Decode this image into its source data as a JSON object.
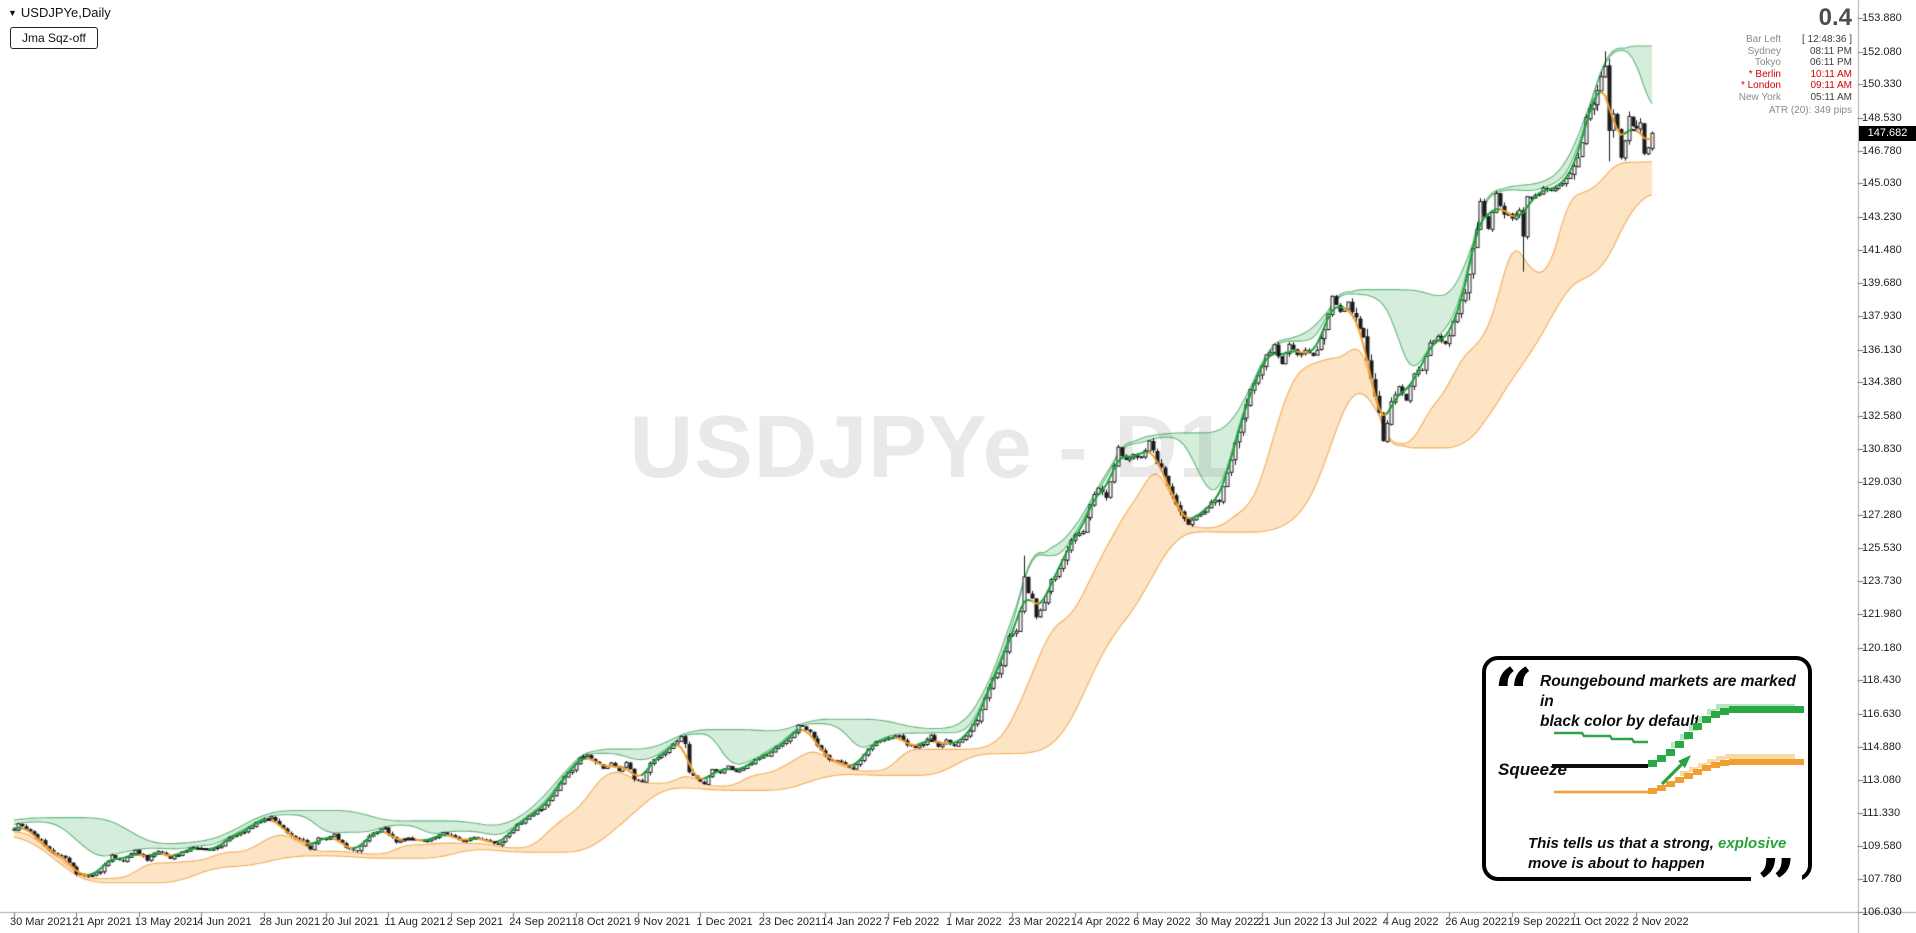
{
  "window": {
    "symbol_corner": "USDJPYe,Daily",
    "indicator_button": "Jma Sqz-off",
    "watermark": "USDJPYe - D1"
  },
  "icons": {
    "symbol_dropdown": "▼"
  },
  "info_panel": {
    "big_value": "0.4",
    "rows": [
      {
        "label": "Bar Left",
        "value": "[ 12:48:36 ]",
        "red": false
      },
      {
        "label": "Sydney",
        "value": "08:11 PM",
        "red": false
      },
      {
        "label": "Tokyo",
        "value": "06:11 PM",
        "red": false
      },
      {
        "label": "* Berlin",
        "value": "10:11 AM",
        "red": true
      },
      {
        "label": "* London",
        "value": "09:11 AM",
        "red": true
      },
      {
        "label": "New York",
        "value": "05:11 AM",
        "red": false
      }
    ],
    "atr_line": "ATR (20): 349 pips"
  },
  "price_axis": {
    "ticks": [
      "153.880",
      "152.080",
      "150.330",
      "148.530",
      "146.780",
      "145.030",
      "143.230",
      "141.480",
      "139.680",
      "137.930",
      "136.130",
      "134.380",
      "132.580",
      "130.830",
      "129.030",
      "127.280",
      "125.530",
      "123.730",
      "121.980",
      "120.180",
      "118.430",
      "116.630",
      "114.880",
      "113.080",
      "111.330",
      "109.580",
      "107.780",
      "106.030"
    ],
    "current_price": "147.682"
  },
  "time_axis": {
    "labels": [
      "30 Mar 2021",
      "21 Apr 2021",
      "13 May 2021",
      "4 Jun 2021",
      "28 Jun 2021",
      "20 Jul 2021",
      "11 Aug 2021",
      "2 Sep 2021",
      "24 Sep 2021",
      "18 Oct 2021",
      "9 Nov 2021",
      "1 Dec 2021",
      "23 Dec 2021",
      "14 Jan 2022",
      "7 Feb 2022",
      "1 Mar 2022",
      "23 Mar 2022",
      "14 Apr 2022",
      "6 May 2022",
      "30 May 2022",
      "21 Jun 2022",
      "13 Jul 2022",
      "4 Aug 2022",
      "26 Aug 2022",
      "19 Sep 2022",
      "11 Oct 2022",
      "2 Nov 2022"
    ],
    "label_bar_step": 16
  },
  "callout": {
    "line1": "Roungebound markets are marked in",
    "line2": "black color by default",
    "squeeze_label": "Squeeze",
    "bottom_pre": "This tells us that a strong, ",
    "bottom_highlight": "explosive",
    "bottom_post": "move is about to happen",
    "highlight_color": "#27a23c"
  },
  "chart_data": {
    "type": "candlestick",
    "title": "USDJPYe Daily candles with JMA Squeeze bands",
    "x_axis": "daily bars, 30 Mar 2021 - 8 Nov 2022",
    "y_axis": "USDJPY price",
    "y_range": [
      106.03,
      153.88
    ],
    "grid": false,
    "bars_total": 421,
    "bar0_date": "30 Mar 2021",
    "current_price": 147.682,
    "close_anchors": [
      [
        0,
        110.4
      ],
      [
        1,
        110.72
      ],
      [
        4,
        110.3
      ],
      [
        7,
        109.8
      ],
      [
        10,
        109.2
      ],
      [
        13,
        108.9
      ],
      [
        16,
        108.1
      ],
      [
        19,
        107.9
      ],
      [
        22,
        108.2
      ],
      [
        25,
        109.1
      ],
      [
        28,
        108.7
      ],
      [
        31,
        109.3
      ],
      [
        34,
        108.8
      ],
      [
        37,
        109.3
      ],
      [
        40,
        108.9
      ],
      [
        43,
        109.2
      ],
      [
        46,
        109.5
      ],
      [
        50,
        109.3
      ],
      [
        53,
        109.6
      ],
      [
        56,
        110.1
      ],
      [
        59,
        110.3
      ],
      [
        62,
        110.8
      ],
      [
        66,
        111.1
      ],
      [
        68,
        110.7
      ],
      [
        71,
        110.1
      ],
      [
        74,
        109.8
      ],
      [
        76,
        109.4
      ],
      [
        78,
        110.0
      ],
      [
        80,
        109.9
      ],
      [
        82,
        110.2
      ],
      [
        85,
        109.4
      ],
      [
        88,
        109.3
      ],
      [
        92,
        110.3
      ],
      [
        95,
        110.5
      ],
      [
        98,
        109.7
      ],
      [
        101,
        110.0
      ],
      [
        104,
        109.8
      ],
      [
        107,
        109.9
      ],
      [
        110,
        110.3
      ],
      [
        113,
        110.0
      ],
      [
        115,
        109.8
      ],
      [
        118,
        110.0
      ],
      [
        121,
        109.9
      ],
      [
        124,
        109.6
      ],
      [
        127,
        110.2
      ],
      [
        129,
        110.7
      ],
      [
        131,
        111.0
      ],
      [
        133,
        111.3
      ],
      [
        135,
        111.5
      ],
      [
        137,
        111.9
      ],
      [
        139,
        112.6
      ],
      [
        141,
        113.3
      ],
      [
        143,
        113.6
      ],
      [
        145,
        114.2
      ],
      [
        147,
        114.4
      ],
      [
        149,
        114.1
      ],
      [
        151,
        113.7
      ],
      [
        153,
        114.0
      ],
      [
        155,
        113.6
      ],
      [
        157,
        114.0
      ],
      [
        159,
        113.2
      ],
      [
        161,
        113.0
      ],
      [
        163,
        114.0
      ],
      [
        165,
        114.3
      ],
      [
        167,
        114.6
      ],
      [
        169,
        115.0
      ],
      [
        171,
        115.4
      ],
      [
        172,
        115.1
      ],
      [
        173,
        113.6
      ],
      [
        175,
        113.2
      ],
      [
        177,
        112.9
      ],
      [
        179,
        113.6
      ],
      [
        181,
        113.5
      ],
      [
        183,
        113.8
      ],
      [
        185,
        113.5
      ],
      [
        187,
        113.7
      ],
      [
        189,
        114.0
      ],
      [
        191,
        114.3
      ],
      [
        193,
        114.4
      ],
      [
        195,
        114.8
      ],
      [
        197,
        115.0
      ],
      [
        199,
        115.3
      ],
      [
        201,
        116.0
      ],
      [
        203,
        115.8
      ],
      [
        205,
        115.4
      ],
      [
        207,
        114.6
      ],
      [
        209,
        114.2
      ],
      [
        211,
        114.1
      ],
      [
        213,
        113.9
      ],
      [
        215,
        113.7
      ],
      [
        217,
        114.1
      ],
      [
        219,
        114.7
      ],
      [
        221,
        115.1
      ],
      [
        223,
        115.2
      ],
      [
        225,
        115.4
      ],
      [
        227,
        115.5
      ],
      [
        229,
        115.0
      ],
      [
        231,
        114.8
      ],
      [
        233,
        115.0
      ],
      [
        235,
        115.5
      ],
      [
        237,
        114.9
      ],
      [
        239,
        115.2
      ],
      [
        241,
        114.9
      ],
      [
        243,
        115.3
      ],
      [
        245,
        115.7
      ],
      [
        247,
        116.2
      ],
      [
        249,
        117.5
      ],
      [
        251,
        118.6
      ],
      [
        253,
        119.2
      ],
      [
        255,
        120.8
      ],
      [
        257,
        121.2
      ],
      [
        258,
        122.1
      ],
      [
        259,
        123.9
      ],
      [
        260,
        123.1
      ],
      [
        261,
        122.8
      ],
      [
        262,
        121.8
      ],
      [
        264,
        122.6
      ],
      [
        266,
        123.7
      ],
      [
        268,
        124.3
      ],
      [
        270,
        125.4
      ],
      [
        272,
        126.3
      ],
      [
        274,
        126.4
      ],
      [
        276,
        127.8
      ],
      [
        278,
        128.7
      ],
      [
        280,
        128.3
      ],
      [
        282,
        130.0
      ],
      [
        283,
        130.8
      ],
      [
        285,
        130.2
      ],
      [
        287,
        130.5
      ],
      [
        289,
        130.3
      ],
      [
        291,
        131.2
      ],
      [
        293,
        130.1
      ],
      [
        295,
        129.3
      ],
      [
        297,
        128.4
      ],
      [
        299,
        127.4
      ],
      [
        301,
        126.7
      ],
      [
        303,
        127.2
      ],
      [
        305,
        127.5
      ],
      [
        307,
        127.9
      ],
      [
        309,
        128.1
      ],
      [
        311,
        129.6
      ],
      [
        313,
        131.1
      ],
      [
        315,
        132.6
      ],
      [
        317,
        134.0
      ],
      [
        319,
        134.8
      ],
      [
        321,
        135.8
      ],
      [
        323,
        136.3
      ],
      [
        325,
        135.3
      ],
      [
        327,
        136.4
      ],
      [
        329,
        135.9
      ],
      [
        331,
        136.1
      ],
      [
        333,
        135.7
      ],
      [
        335,
        136.6
      ],
      [
        337,
        137.9
      ],
      [
        338,
        138.9
      ],
      [
        340,
        138.2
      ],
      [
        342,
        138.6
      ],
      [
        344,
        137.8
      ],
      [
        346,
        136.7
      ],
      [
        348,
        134.5
      ],
      [
        350,
        132.8
      ],
      [
        351,
        131.2
      ],
      [
        353,
        133.2
      ],
      [
        355,
        134.1
      ],
      [
        357,
        133.4
      ],
      [
        359,
        134.9
      ],
      [
        361,
        135.1
      ],
      [
        363,
        136.5
      ],
      [
        365,
        136.8
      ],
      [
        367,
        136.5
      ],
      [
        369,
        137.5
      ],
      [
        371,
        138.8
      ],
      [
        373,
        139.9
      ],
      [
        374,
        141.5
      ],
      [
        376,
        144.0
      ],
      [
        378,
        142.6
      ],
      [
        380,
        144.4
      ],
      [
        382,
        143.4
      ],
      [
        384,
        143.2
      ],
      [
        386,
        143.7
      ],
      [
        387,
        142.2
      ],
      [
        388,
        144.3
      ],
      [
        390,
        144.4
      ],
      [
        392,
        144.7
      ],
      [
        394,
        144.6
      ],
      [
        396,
        144.9
      ],
      [
        398,
        145.2
      ],
      [
        400,
        145.8
      ],
      [
        402,
        147.2
      ],
      [
        403,
        148.7
      ],
      [
        405,
        149.3
      ],
      [
        406,
        149.9
      ],
      [
        407,
        150.8
      ],
      [
        408,
        151.3
      ],
      [
        409,
        147.7
      ],
      [
        410,
        148.9
      ],
      [
        411,
        147.9
      ],
      [
        412,
        146.4
      ],
      [
        413,
        147.4
      ],
      [
        414,
        148.6
      ],
      [
        415,
        148.2
      ],
      [
        416,
        147.9
      ],
      [
        417,
        148.3
      ],
      [
        418,
        146.7
      ],
      [
        419,
        146.9
      ],
      [
        420,
        147.68
      ]
    ],
    "spikes": [
      {
        "bar": 259,
        "high": 125.1
      },
      {
        "bar": 387,
        "low": 140.3
      },
      {
        "bar": 408,
        "high": 152.1
      },
      {
        "bar": 409,
        "low": 146.2
      }
    ],
    "colors": {
      "candle": "#1b1b1b",
      "up_body": "#ffffff",
      "main_line_up": "#17a23b",
      "main_line_down": "#f59c28",
      "main_line_flat": "#141414",
      "upper_cloud": "rgba(86,184,110,0.25)",
      "upper_edge": "rgba(47,158,79,0.7)",
      "lower_cloud": "rgba(247,167,62,0.30)",
      "lower_edge": "rgba(240,158,58,0.8)"
    }
  }
}
